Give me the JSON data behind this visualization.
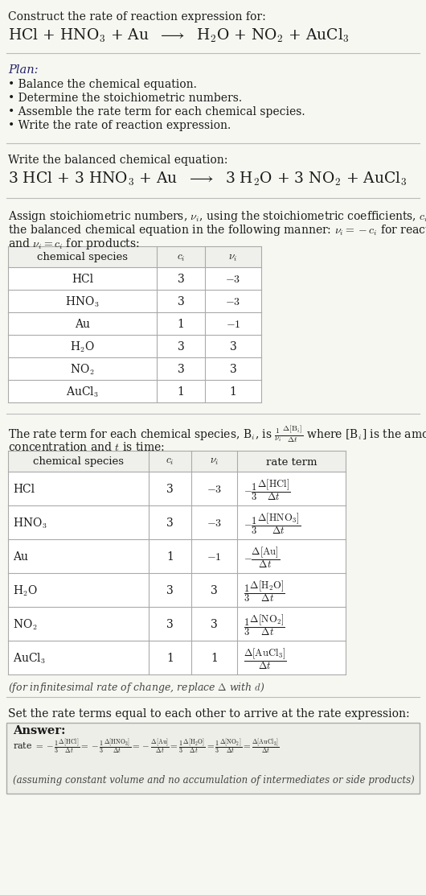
{
  "bg_color": "#f7f7f2",
  "fig_width": 5.3,
  "fig_height": 11.12,
  "title_line1": "Construct the rate of reaction expression for:",
  "table1_data": [
    [
      "HCl",
      "3",
      "-3"
    ],
    [
      "HNO3",
      "3",
      "-3"
    ],
    [
      "Au",
      "1",
      "-1"
    ],
    [
      "H2O",
      "3",
      "3"
    ],
    [
      "NO2",
      "3",
      "3"
    ],
    [
      "AuCl3",
      "1",
      "1"
    ]
  ],
  "table2_data": [
    [
      "HCl",
      "3",
      "-3",
      "hcl"
    ],
    [
      "HNO3",
      "3",
      "-3",
      "hno3"
    ],
    [
      "Au",
      "1",
      "-1",
      "au"
    ],
    [
      "H2O",
      "3",
      "3",
      "h2o"
    ],
    [
      "NO2",
      "3",
      "3",
      "no2"
    ],
    [
      "AuCl3",
      "1",
      "1",
      "aucl3"
    ]
  ]
}
